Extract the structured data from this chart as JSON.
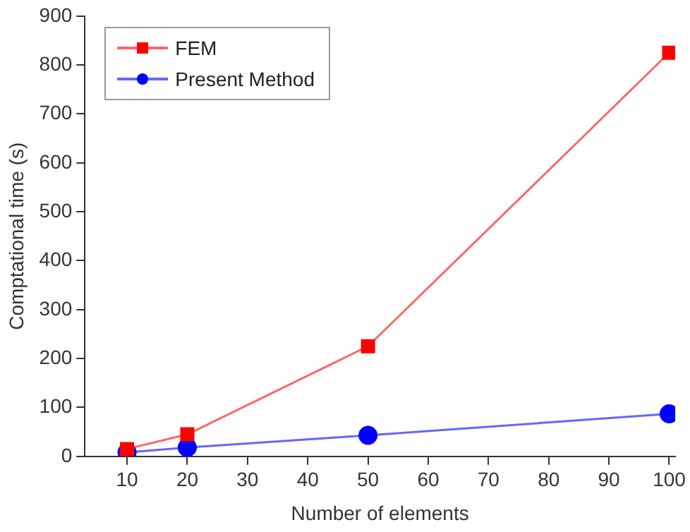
{
  "chart_data": {
    "type": "line",
    "xlabel": "Number of elements",
    "ylabel": "Comptational time (s)",
    "xlim": [
      3,
      101
    ],
    "xticks": [
      10,
      20,
      30,
      40,
      50,
      60,
      70,
      80,
      90,
      100
    ],
    "ylim": [
      0,
      900
    ],
    "yticks": [
      0,
      100,
      200,
      300,
      400,
      500,
      600,
      700,
      800,
      900
    ],
    "x": [
      10,
      20,
      50,
      100
    ],
    "series": [
      {
        "name": "FEM",
        "color": "#ff0000",
        "marker": "square",
        "values": [
          15,
          45,
          225,
          825
        ]
      },
      {
        "name": "Present Method",
        "color": "#0000ff",
        "marker": "circle",
        "values": [
          8,
          18,
          43,
          87
        ]
      }
    ],
    "grid": false,
    "legend": "top left",
    "line_style": "solid"
  }
}
